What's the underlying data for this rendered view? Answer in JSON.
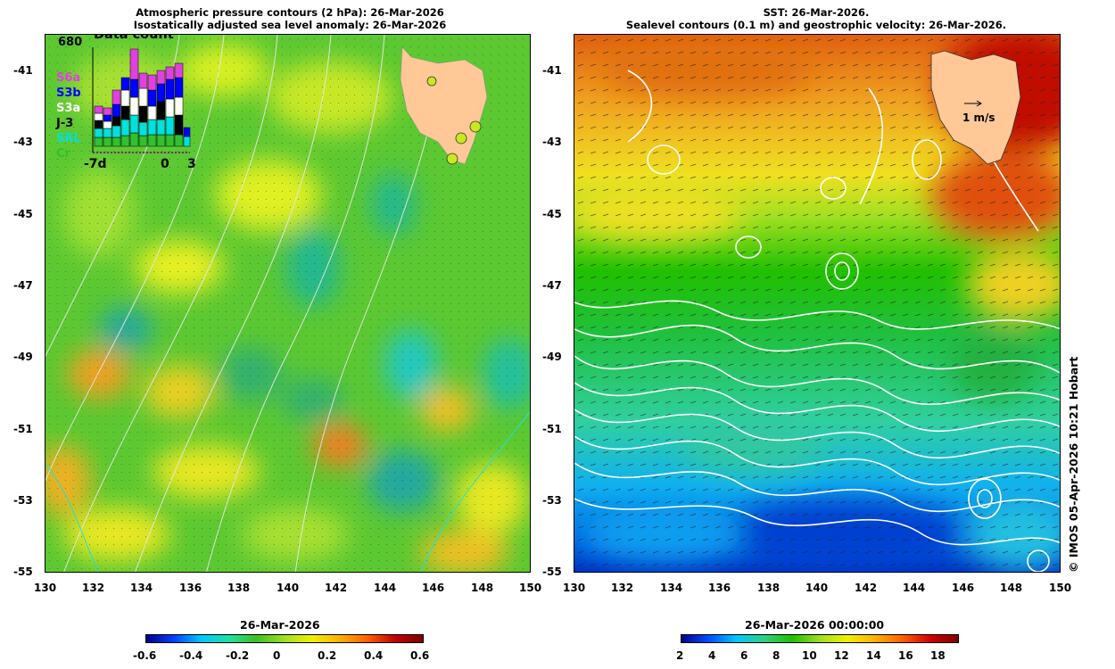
{
  "left_panel": {
    "title_line1": "Atmospheric pressure contours (2 hPa): 26-Mar-2026",
    "title_line2": "Isostatically adjusted sea level anomaly: 26-Mar-2026",
    "colorbar_date": "26-Mar-2026",
    "colorbar_ticks": [
      "-0.6",
      "-0.4",
      "-0.2",
      "0",
      "0.2",
      "0.4",
      "0.6"
    ],
    "colorbar_colors": [
      "#00008f",
      "#0040ff",
      "#00c8ff",
      "#20e0a0",
      "#40c020",
      "#a0e020",
      "#f0f000",
      "#ffb000",
      "#ff6000",
      "#c00000",
      "#800000"
    ],
    "data_count": {
      "label": "Data count",
      "max": "680",
      "sensors": [
        {
          "name": "S6a",
          "color": "#e040e0"
        },
        {
          "name": "S3b",
          "color": "#0000ff"
        },
        {
          "name": "S3a",
          "color": "#ffffff"
        },
        {
          "name": "J-3",
          "color": "#000000"
        },
        {
          "name": "SRL",
          "color": "#00e0e0"
        },
        {
          "name": "Cr",
          "color": "#30c030"
        }
      ],
      "x_ticks": [
        "-7d",
        "0",
        "3"
      ]
    }
  },
  "right_panel": {
    "title_line1": "SST: 26-Mar-2026.",
    "title_line2": "Sealevel contours (0.1 m) and geostrophic velocity: 26-Mar-2026.",
    "colorbar_date": "26-Mar-2026 00:00:00",
    "colorbar_ticks": [
      "2",
      "4",
      "6",
      "8",
      "10",
      "12",
      "14",
      "16",
      "18"
    ],
    "colorbar_colors": [
      "#00008f",
      "#0050ff",
      "#00c8ff",
      "#30d080",
      "#20c000",
      "#a0e020",
      "#f0f000",
      "#ffb000",
      "#ff6000",
      "#d00000",
      "#800000"
    ],
    "velocity_scale_label": "1 m/s"
  },
  "axes": {
    "lon_ticks": [
      "130",
      "132",
      "134",
      "136",
      "138",
      "140",
      "142",
      "144",
      "146",
      "148",
      "150"
    ],
    "lat_ticks": [
      "-41",
      "-43",
      "-45",
      "-47",
      "-49",
      "-51",
      "-53",
      "-55"
    ]
  },
  "credit": "© IMOS 05-Apr-2026 10:21 Hobart",
  "colors": {
    "land": "#ffc896",
    "contour_left": "#e8e8e8",
    "contour_right": "#ffffff"
  }
}
